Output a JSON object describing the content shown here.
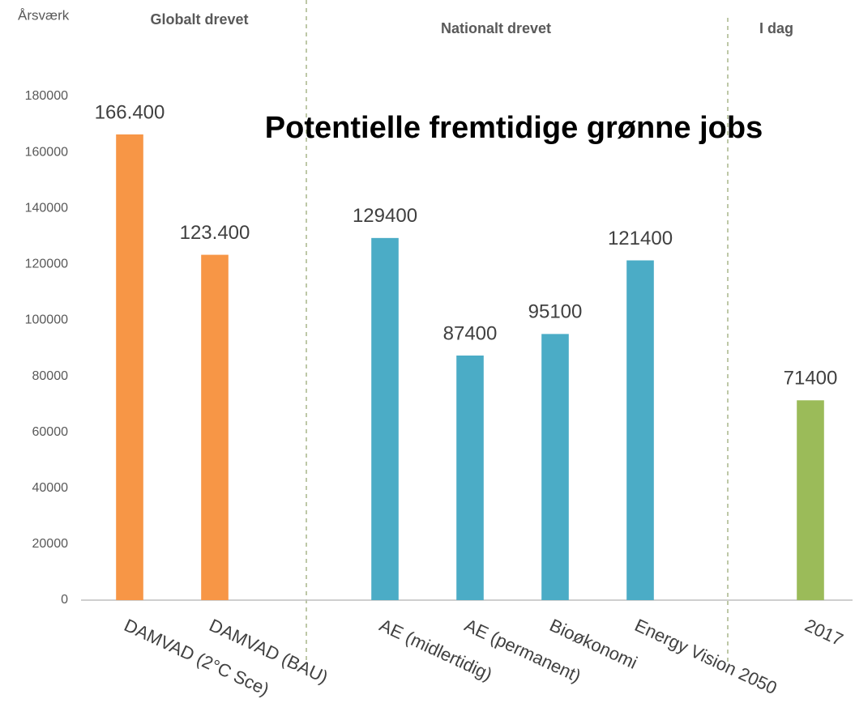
{
  "chart_data": {
    "type": "bar",
    "title": "Potentielle fremtidige grønne jobs",
    "y_label": "Årsværk",
    "annotations": [
      "Globalt drevet",
      "Nationalt drevet",
      "I dag"
    ],
    "categories": [
      "DAMVAD (2°C Sce)",
      "DAMVAD (BAU)",
      null,
      "AE (midlertidig)",
      "AE (permanent)",
      "Bioøkonomi",
      "Energy Vision 2050",
      null,
      "2017"
    ],
    "values": [
      166400,
      123400,
      null,
      129400,
      87400,
      95100,
      121400,
      null,
      71400
    ],
    "value_labels": [
      "166.400",
      "123.400",
      null,
      "129400",
      "87400",
      "95100",
      "121400",
      null,
      "71400"
    ],
    "colors": [
      "#f79646",
      "#f79646",
      null,
      "#4bacc6",
      "#4bacc6",
      "#4bacc6",
      "#4bacc6",
      null,
      "#9bbb59"
    ],
    "ylim": [
      0,
      180000
    ],
    "yticks": [
      0,
      20000,
      40000,
      60000,
      80000,
      100000,
      120000,
      140000,
      160000,
      180000
    ],
    "grid": false
  }
}
